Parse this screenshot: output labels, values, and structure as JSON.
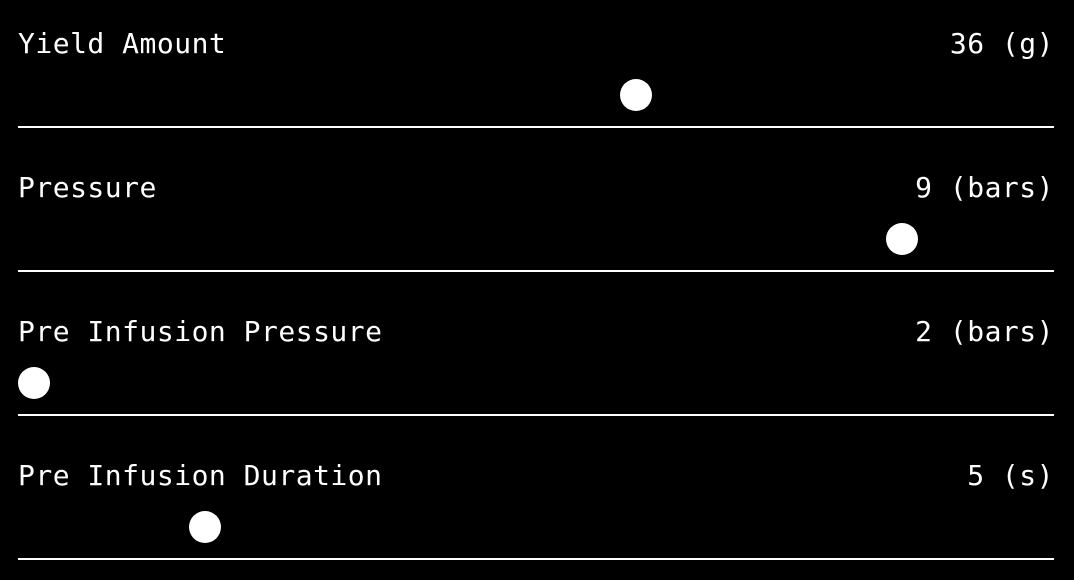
{
  "colors": {
    "background": "#000000",
    "foreground": "#ffffff"
  },
  "sliders": [
    {
      "label": "Yield Amount",
      "value_text": "36 (g)",
      "level": 0.6
    },
    {
      "label": "Pressure",
      "value_text": "9 (bars)",
      "level": 0.865
    },
    {
      "label": "Pre Infusion Pressure",
      "value_text": "2 (bars)",
      "level": 0.0
    },
    {
      "label": "Pre Infusion Duration",
      "value_text": "5 (s)",
      "level": 0.17
    }
  ]
}
